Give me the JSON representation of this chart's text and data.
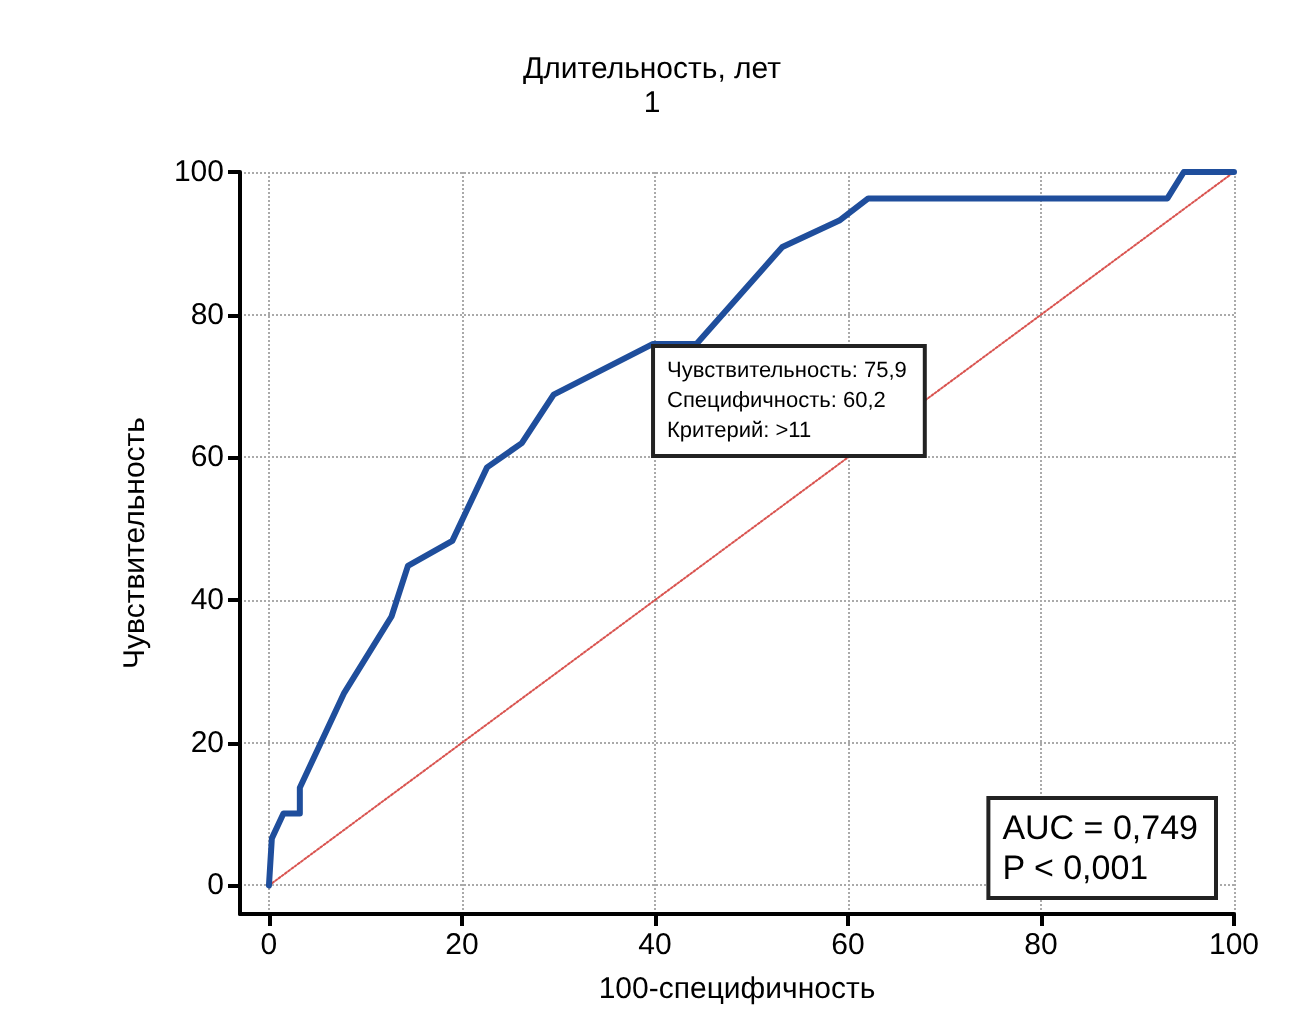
{
  "chart_data": {
    "type": "line",
    "title": "Длительность, лет",
    "subtitle": "1",
    "xlabel": "100-специфичность",
    "ylabel": "Чувствительность",
    "xlim": [
      -3,
      100
    ],
    "ylim": [
      -4,
      100
    ],
    "xticks": [
      0,
      20,
      40,
      60,
      80,
      100
    ],
    "yticks": [
      0,
      20,
      40,
      60,
      80,
      100
    ],
    "grid": true,
    "marker": "none",
    "series": [
      {
        "color": "#1f4e9c",
        "line_style": "solid",
        "x": [
          0,
          0.3,
          1.5,
          3.2,
          3.2,
          7.8,
          12.7,
          14.4,
          19,
          22.6,
          26.2,
          29.5,
          39.8,
          44.3,
          53.2,
          59.1,
          62.1,
          93.1,
          94.8,
          100
        ],
        "values": [
          0,
          6.6,
          10.1,
          10.1,
          13.7,
          27,
          37.7,
          44.8,
          48.3,
          58.6,
          62,
          68.8,
          75.9,
          75.9,
          89.5,
          93.2,
          96.3,
          96.3,
          100,
          100
        ]
      },
      {
        "color": "#d9534f",
        "line_style": "dotted",
        "x": [
          0,
          100
        ],
        "values": [
          0,
          100
        ]
      }
    ],
    "annotations": [
      {
        "text": "Чувствительность: 75,9\nСпецифичность: 60,2\nКритерий: >11",
        "x": 39.8,
        "y": 75.9
      },
      "AUC = 0,749\nP < 0,001"
    ]
  }
}
